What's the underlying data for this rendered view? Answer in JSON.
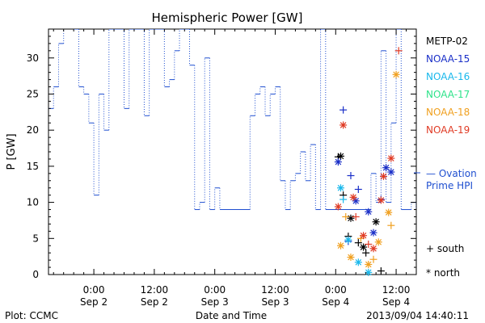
{
  "chart_data": {
    "type": "line",
    "title": "Hemispheric Power [GW]",
    "ylabel": "P [GW]",
    "xlabel": "Date and Time",
    "ylim": [
      0,
      34
    ],
    "yticks": [
      0,
      5,
      10,
      15,
      20,
      25,
      30
    ],
    "xlim": [
      "2013-09-01T15:00",
      "2013-09-04T16:00"
    ],
    "x_ticks": [
      {
        "x": "2013-09-02T00:00",
        "line1": "0:00",
        "line2": "Sep 2"
      },
      {
        "x": "2013-09-02T12:00",
        "line1": "12:00",
        "line2": "Sep 2"
      },
      {
        "x": "2013-09-03T00:00",
        "line1": "0:00",
        "line2": "Sep 3"
      },
      {
        "x": "2013-09-03T12:00",
        "line1": "12:00",
        "line2": "Sep 3"
      },
      {
        "x": "2013-09-04T00:00",
        "line1": "0:00",
        "line2": "Sep 4"
      },
      {
        "x": "2013-09-04T12:00",
        "line1": "12:00",
        "line2": "Sep 4"
      }
    ],
    "colors": {
      "ovation": "#1f4fd0",
      "METP-02": "#000000",
      "NOAA-15": "#1a2fc8",
      "NOAA-16": "#19b8ec",
      "NOAA-17": "#2ee38a",
      "NOAA-18": "#f0a020",
      "NOAA-19": "#e03b25"
    },
    "legend": {
      "placement": "right",
      "satellites": [
        "METP-02",
        "NOAA-15",
        "NOAA-16",
        "NOAA-17",
        "NOAA-18",
        "NOAA-19"
      ],
      "ovation_label_1": "— Ovation",
      "ovation_label_2": "Prime HPI",
      "south_label": "+ south",
      "north_label": "* north"
    },
    "ovation_series": {
      "name": "Ovation Prime HPI",
      "style": "step, dotted vertical transitions",
      "points": [
        [
          "2013-09-01T15:00",
          23
        ],
        [
          "2013-09-01T16:00",
          26
        ],
        [
          "2013-09-01T17:00",
          32
        ],
        [
          "2013-09-01T18:00",
          35
        ],
        [
          "2013-09-01T20:00",
          34
        ],
        [
          "2013-09-01T21:00",
          26
        ],
        [
          "2013-09-01T22:00",
          25
        ],
        [
          "2013-09-01T23:00",
          21
        ],
        [
          "2013-09-02T00:00",
          11
        ],
        [
          "2013-09-02T01:00",
          25
        ],
        [
          "2013-09-02T02:00",
          20
        ],
        [
          "2013-09-02T03:00",
          34
        ],
        [
          "2013-09-02T06:00",
          23
        ],
        [
          "2013-09-02T07:00",
          34
        ],
        [
          "2013-09-02T10:00",
          22
        ],
        [
          "2013-09-02T11:00",
          34
        ],
        [
          "2013-09-02T14:00",
          26
        ],
        [
          "2013-09-02T15:00",
          27
        ],
        [
          "2013-09-02T16:00",
          31
        ],
        [
          "2013-09-02T17:00",
          34
        ],
        [
          "2013-09-02T19:00",
          29
        ],
        [
          "2013-09-02T20:00",
          9
        ],
        [
          "2013-09-02T21:00",
          10
        ],
        [
          "2013-09-02T22:00",
          30
        ],
        [
          "2013-09-02T23:00",
          9
        ],
        [
          "2013-09-03T00:00",
          12
        ],
        [
          "2013-09-03T01:00",
          9
        ],
        [
          "2013-09-03T07:00",
          22
        ],
        [
          "2013-09-03T08:00",
          25
        ],
        [
          "2013-09-03T09:00",
          26
        ],
        [
          "2013-09-03T10:00",
          22
        ],
        [
          "2013-09-03T11:00",
          25
        ],
        [
          "2013-09-03T12:00",
          26
        ],
        [
          "2013-09-03T13:00",
          13
        ],
        [
          "2013-09-03T14:00",
          9
        ],
        [
          "2013-09-03T15:00",
          13
        ],
        [
          "2013-09-03T16:00",
          14
        ],
        [
          "2013-09-03T17:00",
          17
        ],
        [
          "2013-09-03T18:00",
          13
        ],
        [
          "2013-09-03T19:00",
          18
        ],
        [
          "2013-09-03T20:00",
          9
        ],
        [
          "2013-09-03T21:00",
          34
        ],
        [
          "2013-09-03T22:00",
          9
        ],
        [
          "2013-09-04T07:00",
          14
        ],
        [
          "2013-09-04T08:00",
          10
        ],
        [
          "2013-09-04T09:00",
          31
        ],
        [
          "2013-09-04T10:00",
          10
        ],
        [
          "2013-09-04T11:00",
          21
        ],
        [
          "2013-09-04T12:00",
          34
        ],
        [
          "2013-09-04T13:00",
          9
        ],
        [
          "2013-09-04T15:00",
          10
        ],
        [
          "2013-09-04T16:00",
          9
        ]
      ]
    },
    "satellite_points": [
      {
        "sat": "METP-02",
        "hemi": "south",
        "x": "2013-09-04T00:30",
        "y": 16.3
      },
      {
        "sat": "METP-02",
        "hemi": "north",
        "x": "2013-09-04T01:00",
        "y": 16.4
      },
      {
        "sat": "METP-02",
        "hemi": "south",
        "x": "2013-09-04T01:30",
        "y": 11.0
      },
      {
        "sat": "METP-02",
        "hemi": "south",
        "x": "2013-09-04T02:30",
        "y": 5.3
      },
      {
        "sat": "METP-02",
        "hemi": "north",
        "x": "2013-09-04T03:00",
        "y": 7.8
      },
      {
        "sat": "METP-02",
        "hemi": "south",
        "x": "2013-09-04T04:30",
        "y": 4.4
      },
      {
        "sat": "METP-02",
        "hemi": "north",
        "x": "2013-09-04T05:30",
        "y": 3.8
      },
      {
        "sat": "METP-02",
        "hemi": "south",
        "x": "2013-09-04T06:00",
        "y": 3.0
      },
      {
        "sat": "METP-02",
        "hemi": "north",
        "x": "2013-09-04T08:00",
        "y": 7.3
      },
      {
        "sat": "METP-02",
        "hemi": "south",
        "x": "2013-09-04T09:00",
        "y": 0.5
      },
      {
        "sat": "NOAA-15",
        "hemi": "north",
        "x": "2013-09-04T00:30",
        "y": 15.6
      },
      {
        "sat": "NOAA-15",
        "hemi": "south",
        "x": "2013-09-04T01:30",
        "y": 22.8
      },
      {
        "sat": "NOAA-15",
        "hemi": "south",
        "x": "2013-09-04T03:00",
        "y": 13.7
      },
      {
        "sat": "NOAA-15",
        "hemi": "north",
        "x": "2013-09-04T04:00",
        "y": 10.2
      },
      {
        "sat": "NOAA-15",
        "hemi": "south",
        "x": "2013-09-04T04:30",
        "y": 11.8
      },
      {
        "sat": "NOAA-15",
        "hemi": "south",
        "x": "2013-09-04T02:30",
        "y": 4.6
      },
      {
        "sat": "NOAA-15",
        "hemi": "north",
        "x": "2013-09-04T06:30",
        "y": 8.7
      },
      {
        "sat": "NOAA-15",
        "hemi": "north",
        "x": "2013-09-04T07:30",
        "y": 5.8
      },
      {
        "sat": "NOAA-15",
        "hemi": "south",
        "x": "2013-09-04T09:00",
        "y": 10.4
      },
      {
        "sat": "NOAA-15",
        "hemi": "north",
        "x": "2013-09-04T10:00",
        "y": 14.8
      },
      {
        "sat": "NOAA-15",
        "hemi": "north",
        "x": "2013-09-04T11:00",
        "y": 14.2
      },
      {
        "sat": "NOAA-16",
        "hemi": "north",
        "x": "2013-09-04T01:00",
        "y": 12.0
      },
      {
        "sat": "NOAA-16",
        "hemi": "south",
        "x": "2013-09-04T01:30",
        "y": 10.4
      },
      {
        "sat": "NOAA-16",
        "hemi": "north",
        "x": "2013-09-04T02:30",
        "y": 4.8
      },
      {
        "sat": "NOAA-16",
        "hemi": "north",
        "x": "2013-09-04T04:30",
        "y": 1.7
      },
      {
        "sat": "NOAA-16",
        "hemi": "north",
        "x": "2013-09-04T06:30",
        "y": 0.3
      },
      {
        "sat": "NOAA-18",
        "hemi": "north",
        "x": "2013-09-04T01:00",
        "y": 4.0
      },
      {
        "sat": "NOAA-18",
        "hemi": "south",
        "x": "2013-09-04T02:00",
        "y": 8.0
      },
      {
        "sat": "NOAA-18",
        "hemi": "north",
        "x": "2013-09-04T03:00",
        "y": 2.4
      },
      {
        "sat": "NOAA-18",
        "hemi": "south",
        "x": "2013-09-04T05:00",
        "y": 5.0
      },
      {
        "sat": "NOAA-18",
        "hemi": "north",
        "x": "2013-09-04T06:30",
        "y": 1.4
      },
      {
        "sat": "NOAA-18",
        "hemi": "south",
        "x": "2013-09-04T07:30",
        "y": 2.1
      },
      {
        "sat": "NOAA-18",
        "hemi": "north",
        "x": "2013-09-04T08:30",
        "y": 4.5
      },
      {
        "sat": "NOAA-18",
        "hemi": "north",
        "x": "2013-09-04T10:30",
        "y": 8.6
      },
      {
        "sat": "NOAA-18",
        "hemi": "south",
        "x": "2013-09-04T11:00",
        "y": 6.8
      },
      {
        "sat": "NOAA-18",
        "hemi": "north",
        "x": "2013-09-04T12:00",
        "y": 27.7
      },
      {
        "sat": "NOAA-19",
        "hemi": "north",
        "x": "2013-09-04T00:30",
        "y": 9.4
      },
      {
        "sat": "NOAA-19",
        "hemi": "north",
        "x": "2013-09-04T01:30",
        "y": 20.7
      },
      {
        "sat": "NOAA-19",
        "hemi": "north",
        "x": "2013-09-04T03:30",
        "y": 10.7
      },
      {
        "sat": "NOAA-19",
        "hemi": "south",
        "x": "2013-09-04T04:00",
        "y": 8.0
      },
      {
        "sat": "NOAA-19",
        "hemi": "north",
        "x": "2013-09-04T05:30",
        "y": 5.4
      },
      {
        "sat": "NOAA-19",
        "hemi": "south",
        "x": "2013-09-04T06:30",
        "y": 4.2
      },
      {
        "sat": "NOAA-19",
        "hemi": "north",
        "x": "2013-09-04T07:30",
        "y": 3.6
      },
      {
        "sat": "NOAA-19",
        "hemi": "north",
        "x": "2013-09-04T09:30",
        "y": 13.6
      },
      {
        "sat": "NOAA-19",
        "hemi": "north",
        "x": "2013-09-04T09:00",
        "y": 10.3
      },
      {
        "sat": "NOAA-19",
        "hemi": "north",
        "x": "2013-09-04T11:00",
        "y": 16.1
      },
      {
        "sat": "NOAA-19",
        "hemi": "south",
        "x": "2013-09-04T12:30",
        "y": 31.0
      }
    ]
  },
  "footer": {
    "plot_credit": "Plot: CCMC",
    "timestamp": "2013/09/04 14:40:11"
  }
}
